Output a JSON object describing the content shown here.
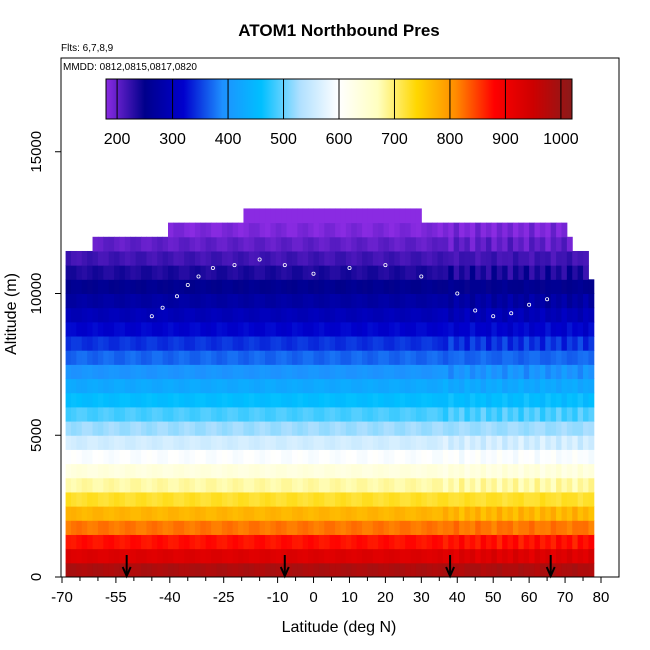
{
  "chart_data": {
    "type": "heatmap",
    "title": "ATOM1 Northbound Pres",
    "subtitle_flights": "Flts: 6,7,8,9",
    "subtitle_dates": "MMDD: 0812,0815,0817,0820",
    "xlabel": "Latitude (deg N)",
    "ylabel": "Altitude (m)",
    "xlim": [
      -70,
      80
    ],
    "ylim": [
      0,
      17000
    ],
    "x_ticks": [
      -70,
      -55,
      -40,
      -25,
      -10,
      0,
      10,
      20,
      30,
      40,
      50,
      60,
      70,
      80
    ],
    "x_tick_labels": [
      "-70",
      "-55",
      "-40",
      "-25",
      "-10",
      "0",
      "10",
      "20",
      "30",
      "40",
      "50",
      "60",
      "70",
      "80"
    ],
    "x_minor_ticks": [
      -65,
      -60,
      -50,
      -45,
      -35,
      -30,
      -20,
      -15,
      -5,
      5,
      15,
      25,
      35,
      45,
      55,
      65,
      75
    ],
    "y_ticks": [
      0,
      5000,
      10000,
      15000
    ],
    "y_tick_labels": [
      "0",
      "5000",
      "10000",
      "15000"
    ],
    "colorbar": {
      "min": 180,
      "max": 1020,
      "ticks": [
        200,
        300,
        400,
        500,
        600,
        700,
        800,
        900,
        1000
      ],
      "tick_labels": [
        "200",
        "300",
        "400",
        "500",
        "600",
        "700",
        "800",
        "900",
        "1000"
      ],
      "colors": [
        "#8a2be2",
        "#00008b",
        "#0000cd",
        "#1e90ff",
        "#00bfff",
        "#b0e0ff",
        "#ffffff",
        "#ffffc0",
        "#ffd700",
        "#ff8c00",
        "#ff0000",
        "#cd0000",
        "#8b1a1a"
      ]
    },
    "pressure_profile": [
      {
        "alt": 0,
        "pres": 1013
      },
      {
        "alt": 1000,
        "pres": 899
      },
      {
        "alt": 2000,
        "pres": 795
      },
      {
        "alt": 3000,
        "pres": 701
      },
      {
        "alt": 4000,
        "pres": 616
      },
      {
        "alt": 5000,
        "pres": 540
      },
      {
        "alt": 6000,
        "pres": 472
      },
      {
        "alt": 7000,
        "pres": 411
      },
      {
        "alt": 8000,
        "pres": 356
      },
      {
        "alt": 9000,
        "pres": 308
      },
      {
        "alt": 10000,
        "pres": 264
      },
      {
        "alt": 11000,
        "pres": 226
      },
      {
        "alt": 12000,
        "pres": 193
      },
      {
        "alt": 13000,
        "pres": 165
      }
    ],
    "coverage_top": [
      {
        "lat": -69,
        "alt": 11500
      },
      {
        "lat": -61,
        "alt": 12000
      },
      {
        "lat": -40,
        "alt": 12500
      },
      {
        "lat": -20,
        "alt": 13000
      },
      {
        "lat": 30,
        "alt": 12500
      },
      {
        "lat": 70,
        "alt": 12000
      },
      {
        "lat": 72,
        "alt": 11500
      },
      {
        "lat": 76,
        "alt": 10500
      },
      {
        "lat": 78,
        "alt": 7500
      }
    ],
    "flight_track": [
      {
        "lat": -45,
        "alt": 9200
      },
      {
        "lat": -42,
        "alt": 9500
      },
      {
        "lat": -38,
        "alt": 9900
      },
      {
        "lat": -35,
        "alt": 10300
      },
      {
        "lat": -32,
        "alt": 10600
      },
      {
        "lat": -28,
        "alt": 10900
      },
      {
        "lat": -22,
        "alt": 11000
      },
      {
        "lat": -15,
        "alt": 11200
      },
      {
        "lat": -8,
        "alt": 11000
      },
      {
        "lat": 0,
        "alt": 10700
      },
      {
        "lat": 10,
        "alt": 10900
      },
      {
        "lat": 20,
        "alt": 11000
      },
      {
        "lat": 30,
        "alt": 10600
      },
      {
        "lat": 40,
        "alt": 10000
      },
      {
        "lat": 45,
        "alt": 9400
      },
      {
        "lat": 50,
        "alt": 9200
      },
      {
        "lat": 55,
        "alt": 9300
      },
      {
        "lat": 60,
        "alt": 9600
      },
      {
        "lat": 65,
        "alt": 9800
      }
    ],
    "arrow_latitudes": [
      -52,
      -8,
      38,
      66
    ]
  }
}
